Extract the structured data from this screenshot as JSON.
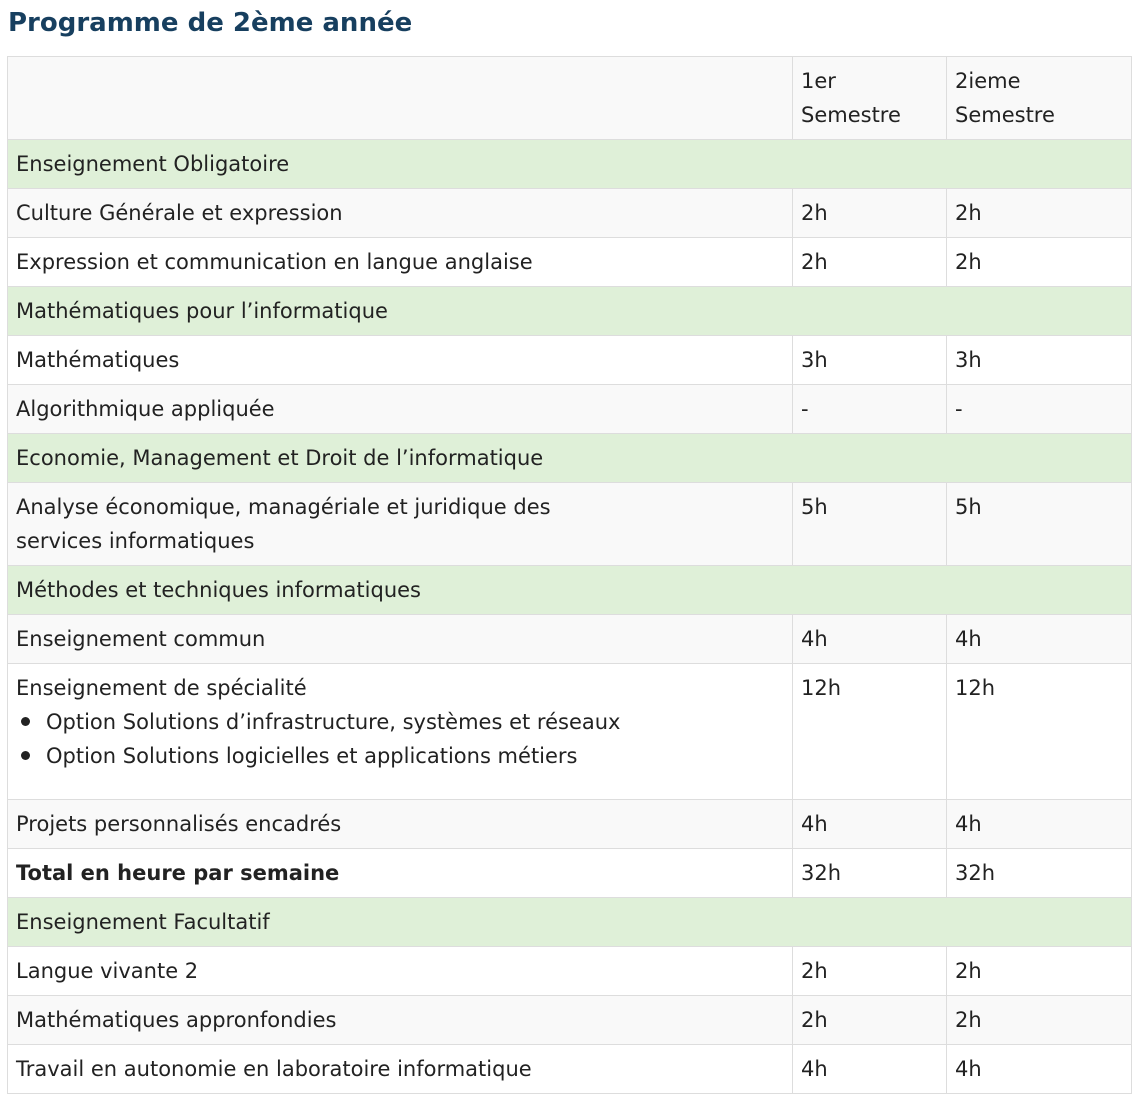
{
  "title": "Programme de 2ème année",
  "header": {
    "col0": "",
    "col1_line1": "1er",
    "col1_line2": "Semestre",
    "col2_line1": "2ieme",
    "col2_line2": "Semestre"
  },
  "rows": [
    {
      "type": "section",
      "label": "Enseignement Obligatoire"
    },
    {
      "type": "row",
      "label": "Culture Générale et expression",
      "s1": "2h",
      "s2": "2h"
    },
    {
      "type": "row",
      "label": "Expression et communication en langue anglaise",
      "s1": "2h",
      "s2": "2h"
    },
    {
      "type": "section",
      "label": "Mathématiques pour l’informatique"
    },
    {
      "type": "row",
      "label": "Mathématiques",
      "s1": "3h",
      "s2": "3h"
    },
    {
      "type": "row",
      "label": "Algorithmique appliquée",
      "s1": "-",
      "s2": "-"
    },
    {
      "type": "section",
      "label": "Economie, Management et Droit de l’informatique"
    },
    {
      "type": "row",
      "label_line1": "Analyse économique, managériale et juridique des",
      "label_line2": "services informatiques",
      "s1": "5h",
      "s2": "5h"
    },
    {
      "type": "section",
      "label": "Méthodes et techniques informatiques"
    },
    {
      "type": "row",
      "label": "Enseignement commun",
      "s1": "4h",
      "s2": "4h"
    },
    {
      "type": "row",
      "label": "Enseignement de spécialité",
      "options": [
        "Option Solutions d’infrastructure, systèmes et réseaux",
        "Option Solutions logicielles et applications métiers"
      ],
      "s1": "12h",
      "s2": "12h"
    },
    {
      "type": "row",
      "label": "Projets personnalisés encadrés",
      "s1": "4h",
      "s2": "4h"
    },
    {
      "type": "total",
      "label": "Total en heure par semaine",
      "s1": "32h",
      "s2": "32h"
    },
    {
      "type": "section",
      "label": "Enseignement Facultatif"
    },
    {
      "type": "row",
      "label": "Langue vivante 2",
      "s1": "2h",
      "s2": "2h"
    },
    {
      "type": "row",
      "label": "Mathématiques appronfondies",
      "s1": "2h",
      "s2": "2h"
    },
    {
      "type": "row",
      "label": "Travail en autonomie en laboratoire informatique",
      "s1": "4h",
      "s2": "4h"
    }
  ]
}
